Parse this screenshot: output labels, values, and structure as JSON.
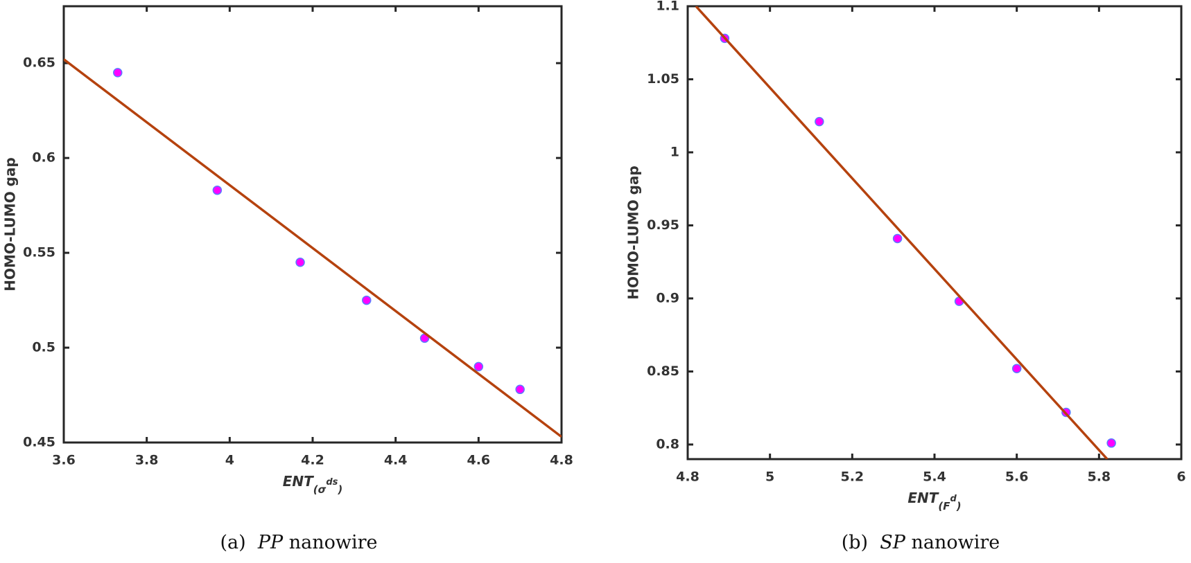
{
  "chart_data": [
    {
      "type": "scatter",
      "ylabel": "HOMO-LUMO gap",
      "xlabel_parts": [
        "ENT",
        "(σ",
        "ds",
        ")"
      ],
      "caption_parts": [
        "(a)",
        "PP",
        "nanowire"
      ],
      "xlim": [
        3.6,
        4.8
      ],
      "xticks": [
        3.6,
        3.8,
        4,
        4.2,
        4.4,
        4.6,
        4.8
      ],
      "ylim": [
        0.45,
        0.68
      ],
      "yticks": [
        0.45,
        0.5,
        0.55,
        0.6,
        0.65
      ],
      "series": [
        {
          "kind": "points",
          "color": "#ff00ff",
          "edge": "#5a7cff",
          "x": [
            3.73,
            3.97,
            4.17,
            4.33,
            4.47,
            4.6,
            4.7
          ],
          "values": [
            0.645,
            0.583,
            0.545,
            0.525,
            0.505,
            0.49,
            0.478
          ]
        },
        {
          "kind": "line",
          "color": "#b5420e",
          "x": [
            3.6,
            4.8
          ],
          "values": [
            0.652,
            0.453
          ]
        }
      ]
    },
    {
      "type": "scatter",
      "ylabel": "HOMO-LUMO gap",
      "xlabel_parts": [
        "ENT",
        "(F",
        "d",
        ")"
      ],
      "caption_parts": [
        "(b)",
        "SP",
        "nanowire"
      ],
      "xlim": [
        4.8,
        6
      ],
      "xticks": [
        4.8,
        5,
        5.2,
        5.4,
        5.6,
        5.8,
        6
      ],
      "ylim": [
        0.79,
        1.1
      ],
      "yticks": [
        0.8,
        0.85,
        0.9,
        0.95,
        1,
        1.05,
        1.1
      ],
      "series": [
        {
          "kind": "points",
          "color": "#ff00ff",
          "edge": "#5a7cff",
          "x": [
            4.89,
            5.12,
            5.31,
            5.46,
            5.6,
            5.72,
            5.83
          ],
          "values": [
            1.078,
            1.021,
            0.941,
            0.898,
            0.852,
            0.822,
            0.801
          ]
        },
        {
          "kind": "line",
          "color": "#b5420e",
          "x": [
            4.82,
            5.82
          ],
          "values": [
            1.1,
            0.79
          ]
        }
      ]
    }
  ]
}
